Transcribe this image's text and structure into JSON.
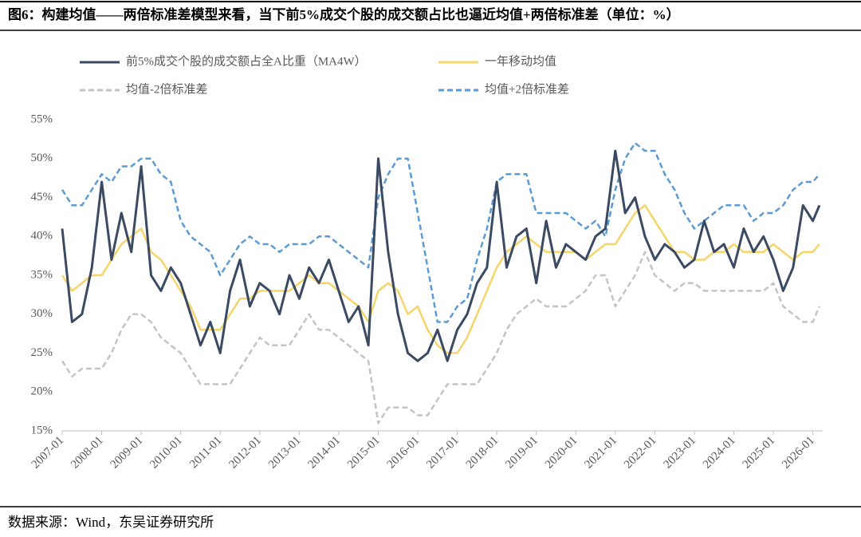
{
  "title": "图6：构建均值——两倍标准差模型来看，当下前5%成交个股的成交额占比也逼近均值+两倍标准差（单位：%）",
  "source": "数据来源：Wind，东吴证券研究所",
  "chart_data": {
    "type": "line",
    "x": [
      "2007-01",
      "2007-04",
      "2007-07",
      "2007-10",
      "2008-01",
      "2008-04",
      "2008-07",
      "2008-10",
      "2009-01",
      "2009-04",
      "2009-07",
      "2009-10",
      "2010-01",
      "2010-04",
      "2010-07",
      "2010-10",
      "2011-01",
      "2011-04",
      "2011-07",
      "2011-10",
      "2012-01",
      "2012-04",
      "2012-07",
      "2012-10",
      "2013-01",
      "2013-04",
      "2013-07",
      "2013-10",
      "2014-01",
      "2014-04",
      "2014-07",
      "2014-10",
      "2015-01",
      "2015-04",
      "2015-07",
      "2015-10",
      "2016-01",
      "2016-04",
      "2016-07",
      "2016-10",
      "2017-01",
      "2017-04",
      "2017-07",
      "2017-10",
      "2018-01",
      "2018-04",
      "2018-07",
      "2018-10",
      "2019-01",
      "2019-04",
      "2019-07",
      "2019-10",
      "2020-01",
      "2020-04",
      "2020-07",
      "2020-10",
      "2021-01",
      "2021-04",
      "2021-07",
      "2021-10",
      "2022-01",
      "2022-04",
      "2022-07",
      "2022-10",
      "2023-01",
      "2023-04",
      "2023-07",
      "2023-10",
      "2024-01",
      "2024-04",
      "2024-07",
      "2024-10",
      "2025-01",
      "2025-04",
      "2025-07",
      "2025-10",
      "2026-01",
      "2026-03"
    ],
    "xlim": [
      "2007-01",
      "2026-04"
    ],
    "xticks": [
      "2007-01",
      "2008-01",
      "2009-01",
      "2010-01",
      "2011-01",
      "2012-01",
      "2013-01",
      "2014-01",
      "2015-01",
      "2016-01",
      "2017-01",
      "2018-01",
      "2019-01",
      "2020-01",
      "2021-01",
      "2022-01",
      "2023-01",
      "2024-01",
      "2025-01",
      "2026-01"
    ],
    "ylim": [
      15,
      55
    ],
    "yticks": [
      {
        "value": 15,
        "label": "15%"
      },
      {
        "value": 20,
        "label": "20%"
      },
      {
        "value": 25,
        "label": "25%"
      },
      {
        "value": 30,
        "label": "30%"
      },
      {
        "value": 35,
        "label": "35%"
      },
      {
        "value": 40,
        "label": "40%"
      },
      {
        "value": 45,
        "label": "45%"
      },
      {
        "value": 50,
        "label": "50%"
      },
      {
        "value": 55,
        "label": "55%"
      }
    ],
    "series": [
      {
        "name": "前5%成交个股的成交额占全A比重（MA4W）",
        "color": "#3b4a63",
        "dash": "solid",
        "values": [
          41,
          29,
          30,
          36,
          47,
          37,
          43,
          38,
          49,
          35,
          33,
          36,
          34,
          30,
          26,
          29,
          25,
          33,
          37,
          31,
          34,
          33,
          30,
          35,
          32,
          36,
          34,
          37,
          33,
          29,
          31,
          26,
          50,
          38,
          30,
          25,
          24,
          25,
          28,
          24,
          28,
          30,
          34,
          36,
          47,
          36,
          40,
          41,
          34,
          42,
          36,
          39,
          38,
          37,
          40,
          41,
          51,
          43,
          45,
          40,
          37,
          39,
          38,
          36,
          37,
          42,
          38,
          39,
          36,
          41,
          38,
          40,
          37,
          33,
          36,
          44,
          42,
          44
        ]
      },
      {
        "name": "一年移动均值",
        "color": "#f5d569",
        "dash": "solid",
        "values": [
          35,
          33,
          34,
          35,
          35,
          37,
          39,
          40,
          41,
          38,
          37,
          35,
          33,
          31,
          28,
          28,
          28,
          30,
          32,
          32,
          33,
          33,
          33,
          33,
          34,
          35,
          34,
          34,
          33,
          32,
          31,
          29,
          33,
          34,
          33,
          30,
          31,
          28,
          26,
          25,
          25,
          27,
          30,
          33,
          36,
          38,
          39,
          40,
          39,
          38,
          38,
          38,
          38,
          37,
          38,
          39,
          39,
          41,
          43,
          44,
          42,
          40,
          38,
          38,
          37,
          37,
          38,
          38,
          39,
          38,
          38,
          38,
          39,
          38,
          37,
          38,
          38,
          39
        ]
      },
      {
        "name": "均值-2倍标准差",
        "color": "#c4c4c4",
        "dash": "dashed",
        "values": [
          24,
          22,
          23,
          23,
          23,
          25,
          28,
          30,
          30,
          29,
          27,
          26,
          25,
          23,
          21,
          21,
          21,
          21,
          23,
          25,
          27,
          26,
          26,
          26,
          28,
          30,
          28,
          28,
          27,
          26,
          25,
          24,
          16,
          18,
          18,
          18,
          17,
          17,
          19,
          21,
          21,
          21,
          21,
          23,
          25,
          28,
          30,
          31,
          32,
          31,
          31,
          31,
          32,
          33,
          35,
          35,
          31,
          33,
          35,
          38,
          35,
          34,
          33,
          34,
          34,
          33,
          33,
          33,
          33,
          33,
          33,
          33,
          34,
          31,
          30,
          29,
          29,
          31
        ]
      },
      {
        "name": "均值+2倍标准差",
        "color": "#5b9bd5",
        "dash": "dashed",
        "values": [
          46,
          44,
          44,
          46,
          48,
          47,
          49,
          49,
          50,
          50,
          48,
          47,
          42,
          40,
          39,
          38,
          35,
          37,
          39,
          40,
          39,
          39,
          38,
          39,
          39,
          39,
          40,
          40,
          39,
          38,
          37,
          36,
          45,
          48,
          50,
          50,
          43,
          36,
          29,
          29,
          31,
          32,
          37,
          41,
          47,
          48,
          48,
          48,
          43,
          43,
          43,
          43,
          42,
          41,
          42,
          40,
          46,
          50,
          52,
          51,
          51,
          48,
          46,
          43,
          41,
          42,
          43,
          44,
          44,
          44,
          42,
          43,
          43,
          44,
          46,
          47,
          47,
          48
        ]
      }
    ]
  }
}
